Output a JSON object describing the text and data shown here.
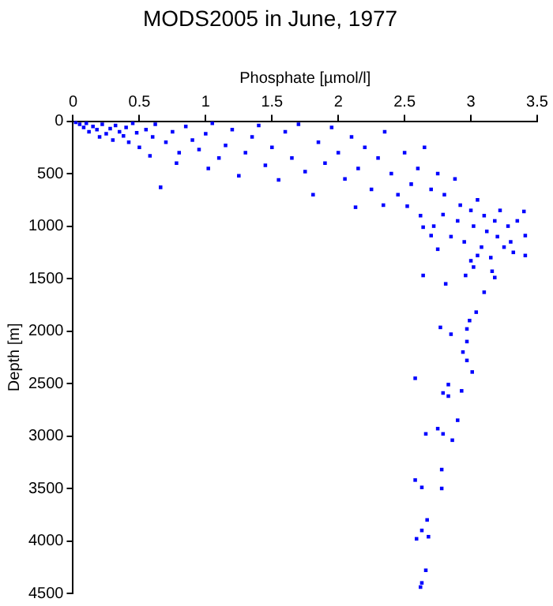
{
  "chart_data": {
    "type": "scatter",
    "title": "MODS2005 in June, 1977",
    "xlabel": "Phosphate [µmol/l]",
    "ylabel": "Depth [m]",
    "xlim": [
      0,
      3.5
    ],
    "ylim": [
      4500,
      0
    ],
    "xticks": [
      0,
      0.5,
      1,
      1.5,
      2,
      2.5,
      3,
      3.5
    ],
    "yticks": [
      0,
      500,
      1000,
      1500,
      2000,
      2500,
      3000,
      3500,
      4000,
      4500
    ],
    "grid": false,
    "marker": "square",
    "color": "#0000ff",
    "x": [
      0.02,
      0.05,
      0.08,
      0.1,
      0.12,
      0.15,
      0.18,
      0.2,
      0.22,
      0.25,
      0.28,
      0.3,
      0.32,
      0.35,
      0.38,
      0.4,
      0.42,
      0.45,
      0.48,
      0.5,
      0.55,
      0.58,
      0.6,
      0.62,
      0.66,
      0.7,
      0.75,
      0.78,
      0.8,
      0.85,
      0.9,
      0.95,
      1.0,
      1.02,
      1.05,
      1.1,
      1.15,
      1.2,
      1.25,
      1.3,
      1.35,
      1.4,
      1.45,
      1.5,
      1.55,
      1.6,
      1.65,
      1.7,
      1.75,
      1.81,
      1.85,
      1.9,
      1.95,
      2.0,
      2.05,
      2.1,
      2.13,
      2.15,
      2.2,
      2.25,
      2.3,
      2.34,
      2.35,
      2.4,
      2.45,
      2.5,
      2.52,
      2.55,
      2.6,
      2.62,
      2.65,
      2.7,
      2.72,
      2.75,
      2.79,
      2.8,
      2.85,
      2.88,
      2.9,
      2.92,
      2.95,
      3.0,
      3.02,
      3.05,
      3.08,
      3.1,
      3.12,
      3.15,
      3.18,
      3.2,
      3.22,
      3.25,
      3.28,
      3.3,
      3.32,
      3.35,
      3.4,
      3.41,
      3.41,
      3.0,
      3.05,
      2.64,
      2.7,
      2.75,
      2.64,
      2.81,
      2.96,
      3.1,
      3.02,
      3.16,
      3.18,
      3.04,
      2.99,
      2.77,
      2.97,
      2.85,
      2.97,
      2.94,
      2.97,
      3.01,
      2.58,
      2.83,
      2.79,
      2.93,
      2.83,
      2.9,
      2.75,
      2.66,
      2.79,
      2.86,
      2.78,
      2.58,
      2.63,
      2.78,
      2.67,
      2.63,
      2.68,
      2.59,
      2.66,
      2.63,
      2.62
    ],
    "values": [
      10,
      30,
      60,
      20,
      100,
      50,
      80,
      150,
      30,
      120,
      70,
      180,
      40,
      100,
      140,
      60,
      200,
      20,
      110,
      250,
      80,
      330,
      150,
      30,
      630,
      200,
      100,
      400,
      300,
      50,
      180,
      270,
      120,
      450,
      20,
      350,
      230,
      80,
      520,
      300,
      150,
      40,
      420,
      250,
      560,
      100,
      350,
      30,
      480,
      700,
      200,
      400,
      60,
      300,
      550,
      150,
      820,
      450,
      250,
      650,
      350,
      800,
      100,
      500,
      700,
      300,
      810,
      600,
      450,
      900,
      250,
      650,
      1000,
      500,
      890,
      700,
      1100,
      550,
      950,
      800,
      1150,
      850,
      1000,
      750,
      1200,
      900,
      1050,
      1300,
      950,
      1100,
      850,
      1200,
      1000,
      1150,
      1250,
      950,
      860,
      1090,
      1280,
      1330,
      1280,
      1010,
      1090,
      1220,
      1470,
      1550,
      1470,
      1630,
      1390,
      1430,
      1490,
      1820,
      1900,
      1965,
      1980,
      2030,
      2100,
      2200,
      2280,
      2390,
      2450,
      2510,
      2590,
      2570,
      2620,
      2850,
      2930,
      2980,
      2980,
      3040,
      3320,
      3420,
      3490,
      3500,
      3800,
      3900,
      3960,
      3980,
      4280,
      4400,
      4440
    ]
  }
}
